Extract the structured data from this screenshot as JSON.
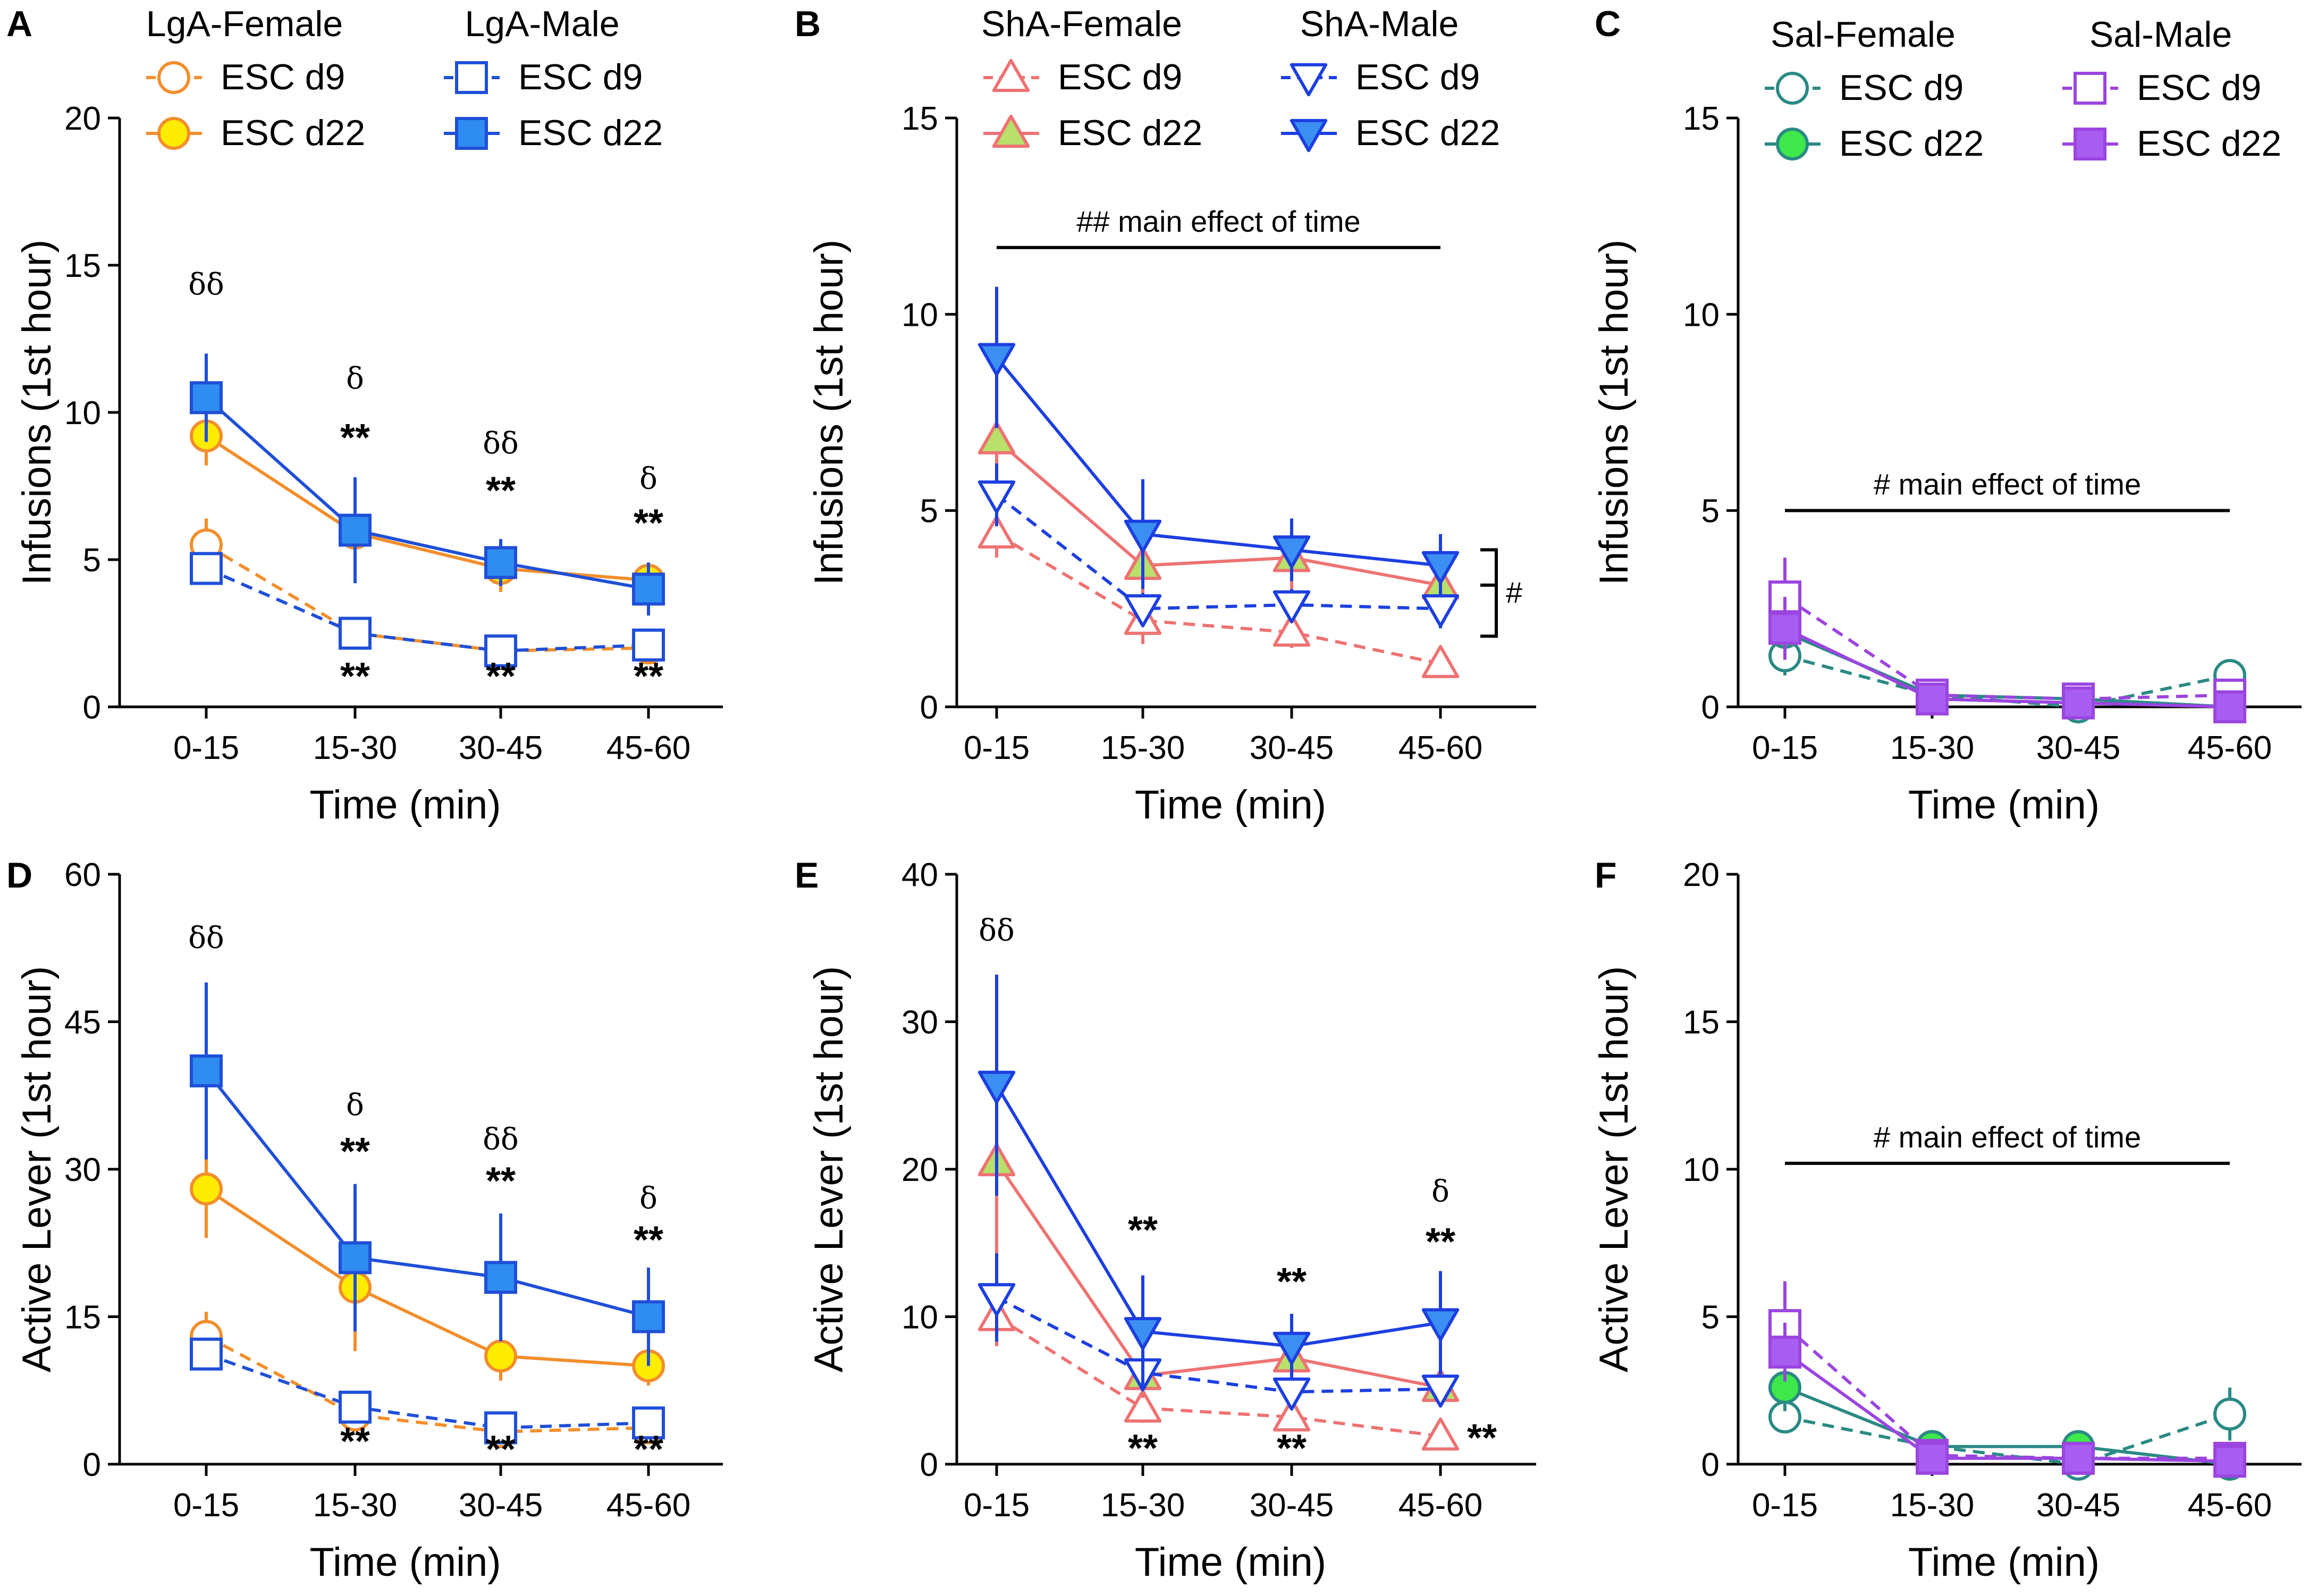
{
  "colors": {
    "lga_female": "#f28e2b",
    "lga_female_fill": "#ffec00",
    "lga_male": "#1f4fd8",
    "lga_male_fill": "#2f8cf0",
    "sha_female": "#ee7272",
    "sha_female_fill": "#b8e06a",
    "sha_male": "#1c3fe0",
    "sha_male_fill": "#3b8ff2",
    "sal_female": "#2a8a84",
    "sal_female_fill": "#3ee84a",
    "sal_male": "#9b45e0",
    "sal_male_fill": "#a75ef0"
  },
  "chart_data": [
    {
      "panel": "A",
      "type": "line",
      "ylabel": "Infusions (1st hour)",
      "xlabel": "Time (min)",
      "categories": [
        "0-15",
        "15-30",
        "30-45",
        "45-60"
      ],
      "ylim": [
        0,
        20
      ],
      "yticks": [
        0,
        5,
        10,
        15,
        20
      ],
      "legend": {
        "groups": [
          {
            "title": "LgA-Female",
            "entries": [
              "ESC d9",
              "ESC d22"
            ]
          },
          {
            "title": "LgA-Male",
            "entries": [
              "ESC d9",
              "ESC d22"
            ]
          }
        ]
      },
      "series": [
        {
          "name": "LgA-Female ESC d9",
          "marker": "circle",
          "filled": false,
          "dashed": true,
          "color": "lga_female",
          "values": [
            5.5,
            2.5,
            1.9,
            2.0
          ],
          "errors": [
            0.9,
            0.4,
            0.3,
            0.4
          ]
        },
        {
          "name": "LgA-Female ESC d22",
          "marker": "circle",
          "filled": true,
          "dashed": false,
          "color": "lga_female",
          "fill": "lga_female_fill",
          "values": [
            9.2,
            5.9,
            4.7,
            4.3
          ],
          "errors": [
            1.0,
            1.5,
            0.8,
            0.6
          ]
        },
        {
          "name": "LgA-Male ESC d9",
          "marker": "square",
          "filled": false,
          "dashed": true,
          "color": "lga_male",
          "values": [
            4.7,
            2.5,
            1.9,
            2.1
          ],
          "errors": [
            0.4,
            0.3,
            0.3,
            0.3
          ]
        },
        {
          "name": "LgA-Male ESC d22",
          "marker": "square",
          "filled": true,
          "dashed": false,
          "color": "lga_male",
          "fill": "lga_male_fill",
          "values": [
            10.5,
            6.0,
            4.9,
            4.0
          ],
          "errors": [
            1.5,
            1.8,
            0.8,
            0.9
          ]
        }
      ],
      "annotations": [
        {
          "text": "δδ",
          "x": "0-15",
          "y": 14.0,
          "kind": "greek"
        },
        {
          "text": "δ",
          "x": "15-30",
          "y": 10.8,
          "kind": "greek"
        },
        {
          "text": "**",
          "x": "15-30",
          "y": 8.7,
          "kind": "sig"
        },
        {
          "text": "δδ",
          "x": "30-45",
          "y": 8.6,
          "kind": "greek"
        },
        {
          "text": "**",
          "x": "30-45",
          "y": 6.9,
          "kind": "sig"
        },
        {
          "text": "δ",
          "x": "45-60",
          "y": 7.4,
          "kind": "greek"
        },
        {
          "text": "**",
          "x": "45-60",
          "y": 5.8,
          "kind": "sig"
        },
        {
          "text": "**",
          "x": "15-30",
          "y": 0.6,
          "kind": "sig"
        },
        {
          "text": "**",
          "x": "30-45",
          "y": 0.6,
          "kind": "sig"
        },
        {
          "text": "**",
          "x": "45-60",
          "y": 0.6,
          "kind": "sig"
        }
      ]
    },
    {
      "panel": "B",
      "type": "line",
      "ylabel": "Infusions (1st hour)",
      "xlabel": "Time (min)",
      "categories": [
        "0-15",
        "15-30",
        "30-45",
        "45-60"
      ],
      "ylim": [
        0,
        15
      ],
      "yticks": [
        0,
        5,
        10,
        15
      ],
      "legend": {
        "groups": [
          {
            "title": "ShA-Female",
            "entries": [
              "ESC d9",
              "ESC d22"
            ]
          },
          {
            "title": "ShA-Male",
            "entries": [
              "ESC d9",
              "ESC d22"
            ]
          }
        ]
      },
      "series": [
        {
          "name": "ShA-Female ESC d9",
          "marker": "triangle-up",
          "filled": false,
          "dashed": true,
          "color": "sha_female",
          "values": [
            4.4,
            2.2,
            1.9,
            1.1
          ],
          "errors": [
            0.6,
            0.6,
            0.4,
            0.3
          ]
        },
        {
          "name": "ShA-Female ESC d22",
          "marker": "triangle-up",
          "filled": true,
          "dashed": false,
          "color": "sha_female",
          "fill": "sha_female_fill",
          "values": [
            6.8,
            3.6,
            3.8,
            3.1
          ],
          "errors": [
            1.3,
            0.8,
            1.0,
            0.5
          ]
        },
        {
          "name": "ShA-Male ESC d9",
          "marker": "triangle-down",
          "filled": false,
          "dashed": true,
          "color": "sha_male",
          "values": [
            5.4,
            2.5,
            2.6,
            2.5
          ],
          "errors": [
            0.8,
            0.4,
            0.4,
            0.5
          ]
        },
        {
          "name": "ShA-Male ESC d22",
          "marker": "triangle-down",
          "filled": true,
          "dashed": false,
          "color": "sha_male",
          "fill": "sha_male_fill",
          "values": [
            8.9,
            4.4,
            4.0,
            3.6
          ],
          "errors": [
            1.8,
            1.4,
            0.8,
            0.8
          ]
        }
      ],
      "annotations": [
        {
          "text": "##  main effect of time",
          "x1": "0-15",
          "x2": "45-60",
          "y": 11.7,
          "kind": "bar-label"
        },
        {
          "text": "#",
          "kind": "bracket",
          "y_top": 4.0,
          "y_mid": 3.1,
          "y_bot": 1.8
        }
      ]
    },
    {
      "panel": "C",
      "type": "line",
      "ylabel": "Infusions (1st hour)",
      "xlabel": "Time (min)",
      "categories": [
        "0-15",
        "15-30",
        "30-45",
        "45-60"
      ],
      "ylim": [
        0,
        15
      ],
      "yticks": [
        0,
        5,
        10,
        15
      ],
      "legend": {
        "groups": [
          {
            "title": "Sal-Female",
            "entries": [
              "ESC d9",
              "ESC d22"
            ]
          },
          {
            "title": "Sal-Male",
            "entries": [
              "ESC d9",
              "ESC d22"
            ]
          }
        ]
      },
      "series": [
        {
          "name": "Sal-Female ESC d9",
          "marker": "circle",
          "filled": false,
          "dashed": true,
          "color": "sal_female",
          "values": [
            1.3,
            0.3,
            0.0,
            0.8
          ],
          "errors": [
            0.5,
            0.2,
            0.1,
            0.3
          ]
        },
        {
          "name": "Sal-Female ESC d22",
          "marker": "circle",
          "filled": true,
          "dashed": false,
          "color": "sal_female",
          "fill": "sal_female_fill",
          "values": [
            1.9,
            0.3,
            0.2,
            0.0
          ],
          "errors": [
            0.6,
            0.2,
            0.1,
            0.1
          ]
        },
        {
          "name": "Sal-Male ESC d9",
          "marker": "square",
          "filled": false,
          "dashed": true,
          "color": "sal_male",
          "values": [
            2.8,
            0.3,
            0.2,
            0.3
          ],
          "errors": [
            1.0,
            0.2,
            0.1,
            0.2
          ]
        },
        {
          "name": "Sal-Male ESC d22",
          "marker": "square",
          "filled": true,
          "dashed": false,
          "color": "sal_male",
          "fill": "sal_male_fill",
          "values": [
            2.0,
            0.2,
            0.1,
            0.0
          ],
          "errors": [
            0.8,
            0.1,
            0.1,
            0.1
          ]
        }
      ],
      "annotations": [
        {
          "text": "#   main effect of time",
          "x1": "0-15",
          "x2": "45-60",
          "y": 5.0,
          "kind": "bar-label"
        }
      ]
    },
    {
      "panel": "D",
      "type": "line",
      "ylabel": "Active Lever (1st hour)",
      "xlabel": "Time (min)",
      "categories": [
        "0-15",
        "15-30",
        "30-45",
        "45-60"
      ],
      "ylim": [
        0,
        60
      ],
      "yticks": [
        0,
        15,
        30,
        45,
        60
      ],
      "series": [
        {
          "name": "LgA-Female ESC d9",
          "marker": "circle",
          "filled": false,
          "dashed": true,
          "color": "lga_female",
          "values": [
            13.0,
            5.0,
            3.3,
            3.7
          ],
          "errors": [
            2.5,
            1.0,
            0.8,
            1.0
          ]
        },
        {
          "name": "LgA-Female ESC d22",
          "marker": "circle",
          "filled": true,
          "dashed": false,
          "color": "lga_female",
          "fill": "lga_female_fill",
          "values": [
            28.0,
            18.0,
            11.0,
            10.0
          ],
          "errors": [
            5.0,
            6.5,
            2.5,
            2.0
          ]
        },
        {
          "name": "LgA-Male ESC d9",
          "marker": "square",
          "filled": false,
          "dashed": true,
          "color": "lga_male",
          "values": [
            11.2,
            5.8,
            3.7,
            4.2
          ],
          "errors": [
            1.0,
            1.0,
            0.6,
            0.8
          ]
        },
        {
          "name": "LgA-Male ESC d22",
          "marker": "square",
          "filled": true,
          "dashed": false,
          "color": "lga_male",
          "fill": "lga_male_fill",
          "values": [
            40.0,
            21.0,
            19.0,
            15.0
          ],
          "errors": [
            9.0,
            7.5,
            6.5,
            5.0
          ]
        }
      ],
      "annotations": [
        {
          "text": "δδ",
          "x": "0-15",
          "y": 52.5,
          "kind": "greek"
        },
        {
          "text": "δ",
          "x": "15-30",
          "y": 35.5,
          "kind": "greek"
        },
        {
          "text": "**",
          "x": "15-30",
          "y": 30.5,
          "kind": "sig"
        },
        {
          "text": "δδ",
          "x": "30-45",
          "y": 32.0,
          "kind": "greek"
        },
        {
          "text": "**",
          "x": "30-45",
          "y": 27.5,
          "kind": "sig"
        },
        {
          "text": "δ",
          "x": "45-60",
          "y": 26.0,
          "kind": "greek"
        },
        {
          "text": "**",
          "x": "45-60",
          "y": 21.5,
          "kind": "sig"
        },
        {
          "text": "**",
          "x": "15-30",
          "y": 1.0,
          "kind": "sig"
        },
        {
          "text": "**",
          "x": "30-45",
          "y": 0.2,
          "kind": "sig"
        },
        {
          "text": "**",
          "x": "45-60",
          "y": 0.2,
          "kind": "sig"
        }
      ]
    },
    {
      "panel": "E",
      "type": "line",
      "ylabel": "Active Lever (1st hour)",
      "xlabel": "Time (min)",
      "categories": [
        "0-15",
        "15-30",
        "30-45",
        "45-60"
      ],
      "ylim": [
        0,
        40
      ],
      "yticks": [
        0,
        10,
        20,
        30,
        40
      ],
      "series": [
        {
          "name": "ShA-Female ESC d9",
          "marker": "triangle-up",
          "filled": false,
          "dashed": true,
          "color": "sha_female",
          "values": [
            10.0,
            3.8,
            3.2,
            1.9
          ],
          "errors": [
            2.0,
            1.0,
            0.8,
            0.5
          ]
        },
        {
          "name": "ShA-Female ESC d22",
          "marker": "triangle-up",
          "filled": true,
          "dashed": false,
          "color": "sha_female",
          "fill": "sha_female_fill",
          "values": [
            20.5,
            6.0,
            7.2,
            5.2
          ],
          "errors": [
            7.0,
            1.5,
            2.0,
            1.0
          ]
        },
        {
          "name": "ShA-Male ESC d9",
          "marker": "triangle-down",
          "filled": false,
          "dashed": true,
          "color": "sha_male",
          "values": [
            11.3,
            6.2,
            4.9,
            5.1
          ],
          "errors": [
            3.0,
            1.2,
            1.0,
            1.0
          ]
        },
        {
          "name": "ShA-Male ESC d22",
          "marker": "triangle-down",
          "filled": true,
          "dashed": false,
          "color": "sha_male",
          "fill": "sha_male_fill",
          "values": [
            25.7,
            9.0,
            8.0,
            9.6
          ],
          "errors": [
            7.5,
            3.8,
            2.2,
            3.5
          ]
        }
      ],
      "annotations": [
        {
          "text": "δδ",
          "x": "0-15",
          "y": 35.5,
          "kind": "greek"
        },
        {
          "text": "**",
          "x": "15-30",
          "y": 15.0,
          "kind": "sig"
        },
        {
          "text": "**",
          "x": "30-45",
          "y": 11.5,
          "kind": "sig"
        },
        {
          "text": "δ",
          "x": "45-60",
          "y": 17.8,
          "kind": "greek"
        },
        {
          "text": "**",
          "x": "45-60",
          "y": 14.2,
          "kind": "sig"
        },
        {
          "text": "**",
          "x": "15-30",
          "y": 0.2,
          "kind": "sig"
        },
        {
          "text": "**",
          "x": "30-45",
          "y": 0.2,
          "kind": "sig"
        },
        {
          "text": "**",
          "x": "after-45-60",
          "y": 0.9,
          "kind": "sig"
        }
      ]
    },
    {
      "panel": "F",
      "type": "line",
      "ylabel": "Active Lever (1st hour)",
      "xlabel": "Time (min)",
      "categories": [
        "0-15",
        "15-30",
        "30-45",
        "45-60"
      ],
      "ylim": [
        0,
        20
      ],
      "yticks": [
        0,
        5,
        10,
        15,
        20
      ],
      "series": [
        {
          "name": "Sal-Female ESC d9",
          "marker": "circle",
          "filled": false,
          "dashed": true,
          "color": "sal_female",
          "values": [
            1.6,
            0.6,
            0.0,
            1.7
          ],
          "errors": [
            0.5,
            0.2,
            0.1,
            0.9
          ]
        },
        {
          "name": "Sal-Female ESC d22",
          "marker": "circle",
          "filled": true,
          "dashed": false,
          "color": "sal_female",
          "fill": "sal_female_fill",
          "values": [
            2.6,
            0.6,
            0.6,
            0.0
          ],
          "errors": [
            0.8,
            0.2,
            0.2,
            0.1
          ]
        },
        {
          "name": "Sal-Male ESC d9",
          "marker": "square",
          "filled": false,
          "dashed": true,
          "color": "sal_male",
          "values": [
            4.7,
            0.3,
            0.2,
            0.2
          ],
          "errors": [
            1.5,
            0.2,
            0.1,
            0.1
          ]
        },
        {
          "name": "Sal-Male ESC d22",
          "marker": "square",
          "filled": true,
          "dashed": false,
          "color": "sal_male",
          "fill": "sal_male_fill",
          "values": [
            3.8,
            0.2,
            0.2,
            0.1
          ],
          "errors": [
            1.0,
            0.1,
            0.1,
            0.1
          ]
        }
      ],
      "annotations": [
        {
          "text": "#   main effect of time",
          "x1": "0-15",
          "x2": "45-60",
          "y": 10.2,
          "kind": "bar-label"
        }
      ]
    }
  ]
}
